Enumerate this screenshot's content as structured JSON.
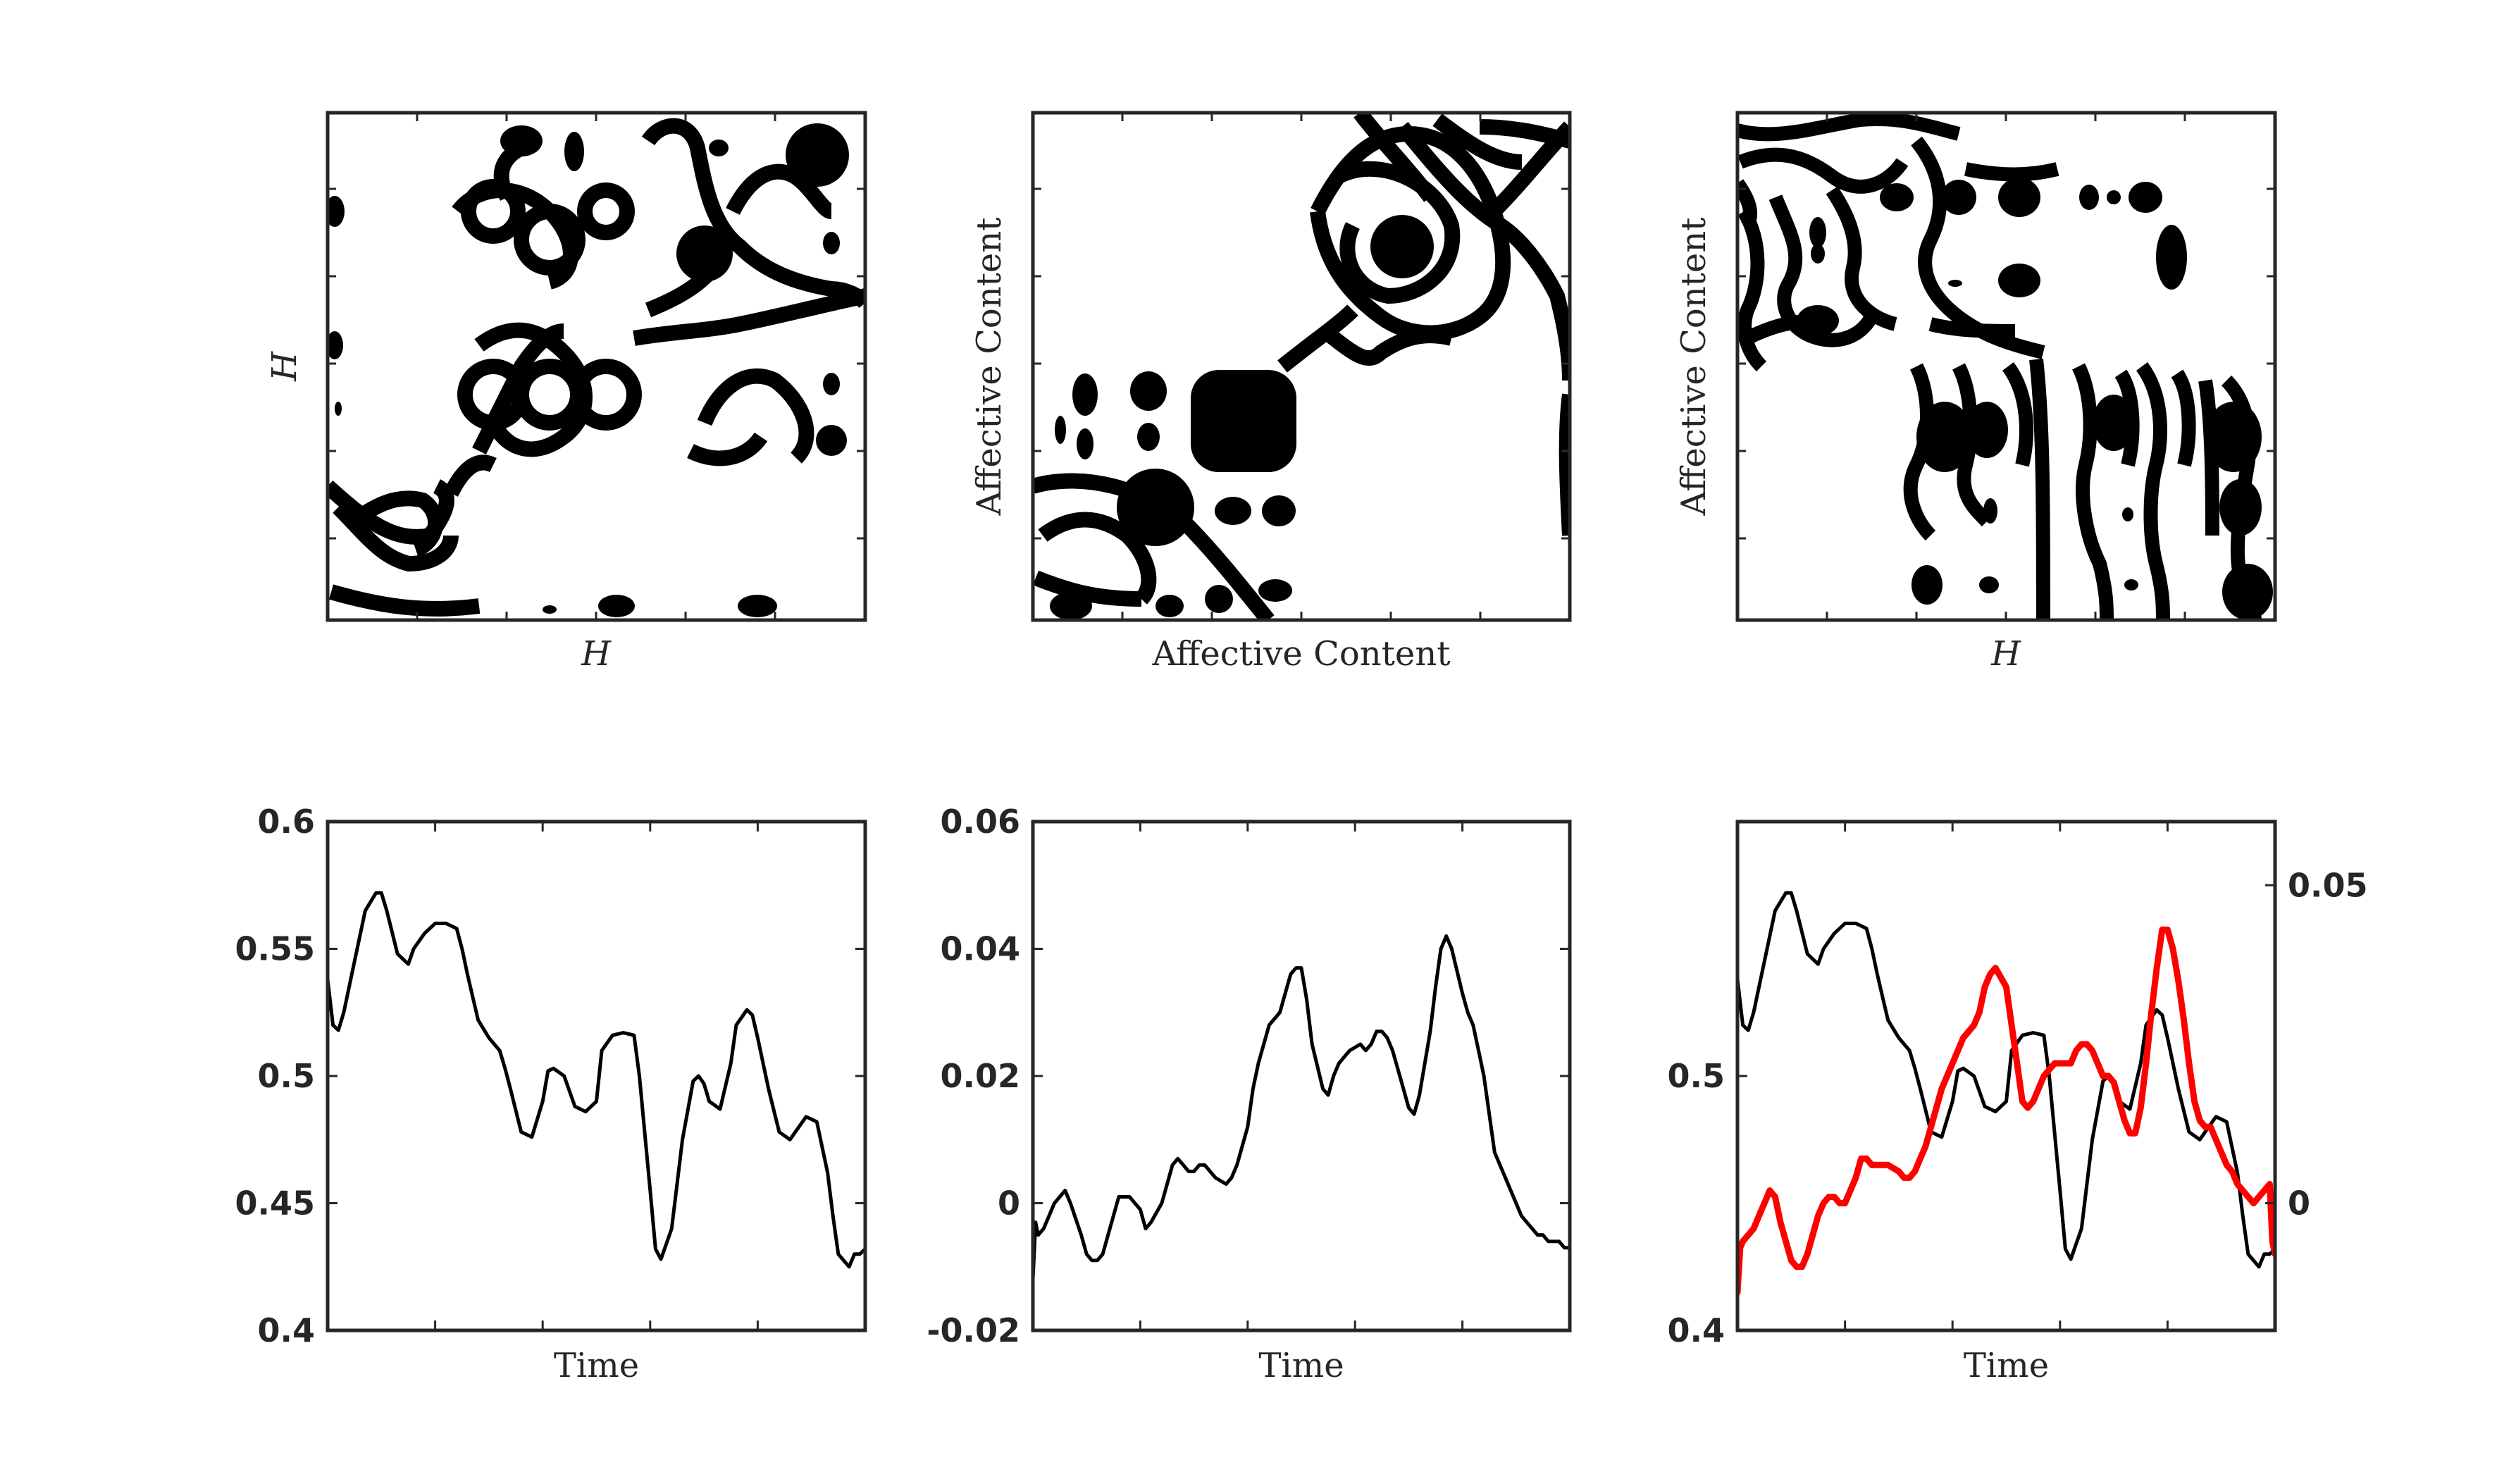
{
  "colors": {
    "line": "#000000",
    "highlight": "#ff0000",
    "frame": "#262626"
  },
  "chart_data": [
    {
      "type": "heatmap",
      "panel": "recurrence-H",
      "xlabel": "H",
      "ylabel": "H",
      "grid": false
    },
    {
      "type": "heatmap",
      "panel": "recurrence-affective",
      "xlabel": "Affective Content",
      "ylabel": "Affective Content",
      "grid": false
    },
    {
      "type": "heatmap",
      "panel": "cross-recurrence",
      "xlabel": "H",
      "ylabel": "Affective Content",
      "grid": false
    },
    {
      "type": "line",
      "panel": "H-time-series",
      "xlabel": "Time",
      "ylabel": "",
      "xlim": [
        0,
        100
      ],
      "ylim": [
        0.4,
        0.6
      ],
      "yticks": [
        "0.4",
        "0.45",
        "0.5",
        "0.55",
        "0.6"
      ],
      "series": [
        {
          "x": [
            0,
            1,
            2,
            3,
            5,
            7,
            9,
            10,
            11,
            13,
            15,
            16,
            18,
            19,
            20,
            22,
            24,
            25,
            26,
            28,
            30,
            32,
            33,
            34,
            36,
            38,
            40,
            41,
            42,
            44,
            46,
            48,
            50,
            51,
            53,
            55,
            57,
            58,
            60,
            61,
            62,
            64,
            66,
            68,
            69,
            70,
            71,
            73,
            75,
            76,
            78,
            79,
            80,
            82,
            84,
            86,
            87,
            89,
            91,
            93,
            94,
            95,
            97,
            98,
            99,
            100
          ],
          "values": [
            0.538,
            0.52,
            0.518,
            0.525,
            0.545,
            0.565,
            0.572,
            0.572,
            0.565,
            0.548,
            0.544,
            0.55,
            0.556,
            0.558,
            0.56,
            0.56,
            0.558,
            0.55,
            0.54,
            0.522,
            0.515,
            0.51,
            0.503,
            0.495,
            0.478,
            0.476,
            0.49,
            0.502,
            0.503,
            0.5,
            0.488,
            0.486,
            0.49,
            0.51,
            0.516,
            0.517,
            0.516,
            0.5,
            0.455,
            0.432,
            0.428,
            0.44,
            0.475,
            0.498,
            0.5,
            0.497,
            0.49,
            0.487,
            0.505,
            0.52,
            0.526,
            0.524,
            0.515,
            0.495,
            0.478,
            0.475,
            0.478,
            0.484,
            0.482,
            0.462,
            0.445,
            0.43,
            0.425,
            0.43,
            0.43,
            0.432
          ]
        }
      ]
    },
    {
      "type": "line",
      "panel": "affective-time-series",
      "xlabel": "Time",
      "ylabel": "",
      "xlim": [
        0,
        100
      ],
      "ylim": [
        -0.02,
        0.06
      ],
      "yticks": [
        "-0.02",
        "0",
        "0.02",
        "0.04",
        "0.06"
      ],
      "series": [
        {
          "x": [
            0,
            0.5,
            1,
            2,
            3,
            4,
            5,
            6,
            7,
            9,
            10,
            11,
            12,
            13,
            14,
            16,
            18,
            19,
            20,
            21,
            22,
            24,
            26,
            27,
            28,
            29,
            30,
            31,
            32,
            33,
            34,
            36,
            37,
            38,
            39,
            40,
            41,
            42,
            44,
            46,
            48,
            49,
            50,
            51,
            52,
            54,
            55,
            56,
            57,
            58,
            59,
            61,
            62,
            63,
            64,
            65,
            66,
            67,
            68,
            69,
            70,
            71,
            72,
            74,
            75,
            76,
            77,
            78,
            80,
            81,
            82,
            83,
            84,
            85,
            86,
            87,
            88,
            89,
            90,
            91,
            92,
            93,
            94,
            95,
            96,
            97,
            98,
            99,
            99.5,
            100
          ],
          "values": [
            -0.012,
            -0.003,
            -0.005,
            -0.004,
            -0.002,
            0,
            0.001,
            0.002,
            0,
            -0.005,
            -0.008,
            -0.009,
            -0.009,
            -0.008,
            -0.005,
            0.001,
            0.001,
            0,
            -0.001,
            -0.004,
            -0.003,
            0,
            0.006,
            0.007,
            0.006,
            0.005,
            0.005,
            0.006,
            0.006,
            0.005,
            0.004,
            0.003,
            0.004,
            0.006,
            0.009,
            0.012,
            0.018,
            0.022,
            0.028,
            0.03,
            0.036,
            0.037,
            0.037,
            0.032,
            0.025,
            0.018,
            0.017,
            0.02,
            0.022,
            0.023,
            0.024,
            0.025,
            0.024,
            0.025,
            0.027,
            0.027,
            0.026,
            0.024,
            0.021,
            0.018,
            0.015,
            0.014,
            0.017,
            0.027,
            0.034,
            0.04,
            0.042,
            0.04,
            0.033,
            0.03,
            0.028,
            0.024,
            0.02,
            0.014,
            0.008,
            0.006,
            0.004,
            0.002,
            0,
            -0.002,
            -0.003,
            -0.004,
            -0.005,
            -0.005,
            -0.006,
            -0.006,
            -0.006,
            -0.007,
            -0.007,
            -0.007
          ]
        }
      ]
    },
    {
      "type": "line",
      "panel": "overlay-time-series",
      "xlabel": "Time",
      "ylabel": "",
      "xlim": [
        0,
        100
      ],
      "ylim": [
        0.4,
        0.6
      ],
      "yticks": [
        "0.4",
        "0.5"
      ],
      "y2lim": [
        -0.02,
        0.06
      ],
      "y2ticks": [
        "0",
        "0.05"
      ],
      "series": [
        {
          "axis": "left",
          "color": "#000000",
          "x": [
            0,
            1,
            2,
            3,
            5,
            7,
            9,
            10,
            11,
            13,
            15,
            16,
            18,
            19,
            20,
            22,
            24,
            25,
            26,
            28,
            30,
            32,
            33,
            34,
            36,
            38,
            40,
            41,
            42,
            44,
            46,
            48,
            50,
            51,
            53,
            55,
            57,
            58,
            60,
            61,
            62,
            64,
            66,
            68,
            69,
            70,
            71,
            73,
            75,
            76,
            78,
            79,
            80,
            82,
            84,
            86,
            87,
            89,
            91,
            93,
            94,
            95,
            97,
            98,
            99,
            100
          ],
          "values": [
            0.538,
            0.52,
            0.518,
            0.525,
            0.545,
            0.565,
            0.572,
            0.572,
            0.565,
            0.548,
            0.544,
            0.55,
            0.556,
            0.558,
            0.56,
            0.56,
            0.558,
            0.55,
            0.54,
            0.522,
            0.515,
            0.51,
            0.503,
            0.495,
            0.478,
            0.476,
            0.49,
            0.502,
            0.503,
            0.5,
            0.488,
            0.486,
            0.49,
            0.51,
            0.516,
            0.517,
            0.516,
            0.5,
            0.455,
            0.432,
            0.428,
            0.44,
            0.475,
            0.498,
            0.5,
            0.497,
            0.49,
            0.487,
            0.505,
            0.52,
            0.526,
            0.524,
            0.515,
            0.495,
            0.478,
            0.475,
            0.478,
            0.484,
            0.482,
            0.462,
            0.445,
            0.43,
            0.425,
            0.43,
            0.43,
            0.432
          ]
        },
        {
          "axis": "right",
          "color": "#ff0000",
          "x": [
            0,
            0.5,
            1,
            2,
            3,
            4,
            5,
            6,
            7,
            8,
            9,
            10,
            11,
            12,
            13,
            14,
            15,
            16,
            17,
            18,
            19,
            20,
            21,
            22,
            23,
            24,
            25,
            26,
            28,
            30,
            31,
            32,
            33,
            34,
            35,
            36,
            38,
            40,
            42,
            44,
            45,
            46,
            47,
            48,
            50,
            51,
            52,
            53,
            54,
            55,
            56,
            57,
            58,
            59,
            60,
            61,
            62,
            63,
            64,
            65,
            66,
            67,
            68,
            69,
            70,
            71,
            72,
            73,
            74,
            75,
            76,
            77,
            78,
            79,
            80,
            81,
            82,
            83,
            84,
            85,
            86,
            87,
            88,
            89,
            90,
            91,
            92,
            93,
            94,
            95,
            96,
            97,
            98,
            99,
            99.5,
            100
          ],
          "values": [
            -0.014,
            -0.007,
            -0.006,
            -0.005,
            -0.004,
            -0.002,
            0,
            0.002,
            0.001,
            -0.003,
            -0.006,
            -0.009,
            -0.01,
            -0.01,
            -0.008,
            -0.005,
            -0.002,
            0,
            0.001,
            0.001,
            0,
            0,
            0.002,
            0.004,
            0.007,
            0.007,
            0.006,
            0.006,
            0.006,
            0.005,
            0.004,
            0.004,
            0.005,
            0.007,
            0.009,
            0.012,
            0.018,
            0.022,
            0.026,
            0.028,
            0.03,
            0.034,
            0.036,
            0.037,
            0.034,
            0.028,
            0.022,
            0.016,
            0.015,
            0.016,
            0.018,
            0.02,
            0.021,
            0.022,
            0.022,
            0.022,
            0.022,
            0.024,
            0.025,
            0.025,
            0.024,
            0.022,
            0.02,
            0.02,
            0.019,
            0.016,
            0.013,
            0.011,
            0.011,
            0.015,
            0.022,
            0.03,
            0.037,
            0.043,
            0.043,
            0.04,
            0.035,
            0.029,
            0.022,
            0.016,
            0.013,
            0.012,
            0.012,
            0.01,
            0.008,
            0.006,
            0.005,
            0.003,
            0.002,
            0.001,
            0,
            0.001,
            0.002,
            0.003,
            -0.006,
            -0.008
          ]
        }
      ]
    }
  ]
}
